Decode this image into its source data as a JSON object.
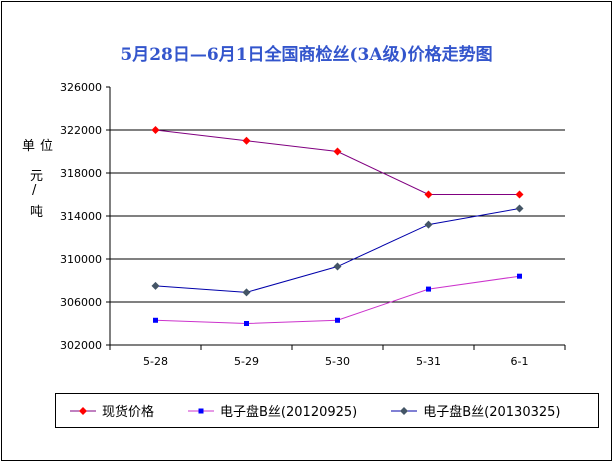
{
  "chart_data": {
    "type": "line",
    "title": "5月28日—6月1日全国商检丝(3A级)价格走势图",
    "ylabel": "单位 元/吨",
    "ylabel_parts": [
      "单",
      "位",
      "元",
      "/",
      "吨"
    ],
    "categories": [
      "5-28",
      "5-29",
      "5-30",
      "5-31",
      "6-1"
    ],
    "ylim": [
      302000,
      326000
    ],
    "yticks": [
      302000,
      306000,
      310000,
      314000,
      318000,
      322000,
      326000
    ],
    "grid": true,
    "legend_position": "bottom",
    "series": [
      {
        "name": "现货价格",
        "values": [
          322000,
          321000,
          320000,
          316000,
          316000
        ],
        "line_color": "#800080",
        "marker_color": "#ff0000",
        "marker": "diamond"
      },
      {
        "name": "电子盘B丝(20120925)",
        "values": [
          304300,
          304000,
          304300,
          307200,
          308400
        ],
        "line_color": "#cc33cc",
        "marker_color": "#0000ff",
        "marker": "square"
      },
      {
        "name": "电子盘B丝(20130325)",
        "values": [
          307500,
          306900,
          309300,
          313200,
          314700
        ],
        "line_color": "#0000aa",
        "marker_color": "#445566",
        "marker": "diamond"
      }
    ]
  }
}
